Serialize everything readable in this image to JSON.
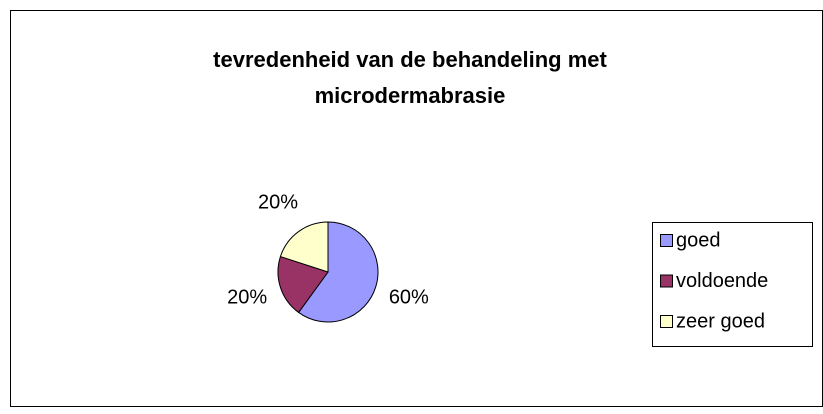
{
  "chart_data": {
    "type": "pie",
    "title": "tevredenheid van de behandeling met microdermabrasie",
    "categories": [
      "goed",
      "voldoende",
      "zeer goed"
    ],
    "values": [
      60,
      20,
      20
    ],
    "value_labels": [
      "60%",
      "20%",
      "20%"
    ],
    "colors": [
      "#9999ff",
      "#993366",
      "#ffffcc"
    ],
    "legend": "right"
  }
}
